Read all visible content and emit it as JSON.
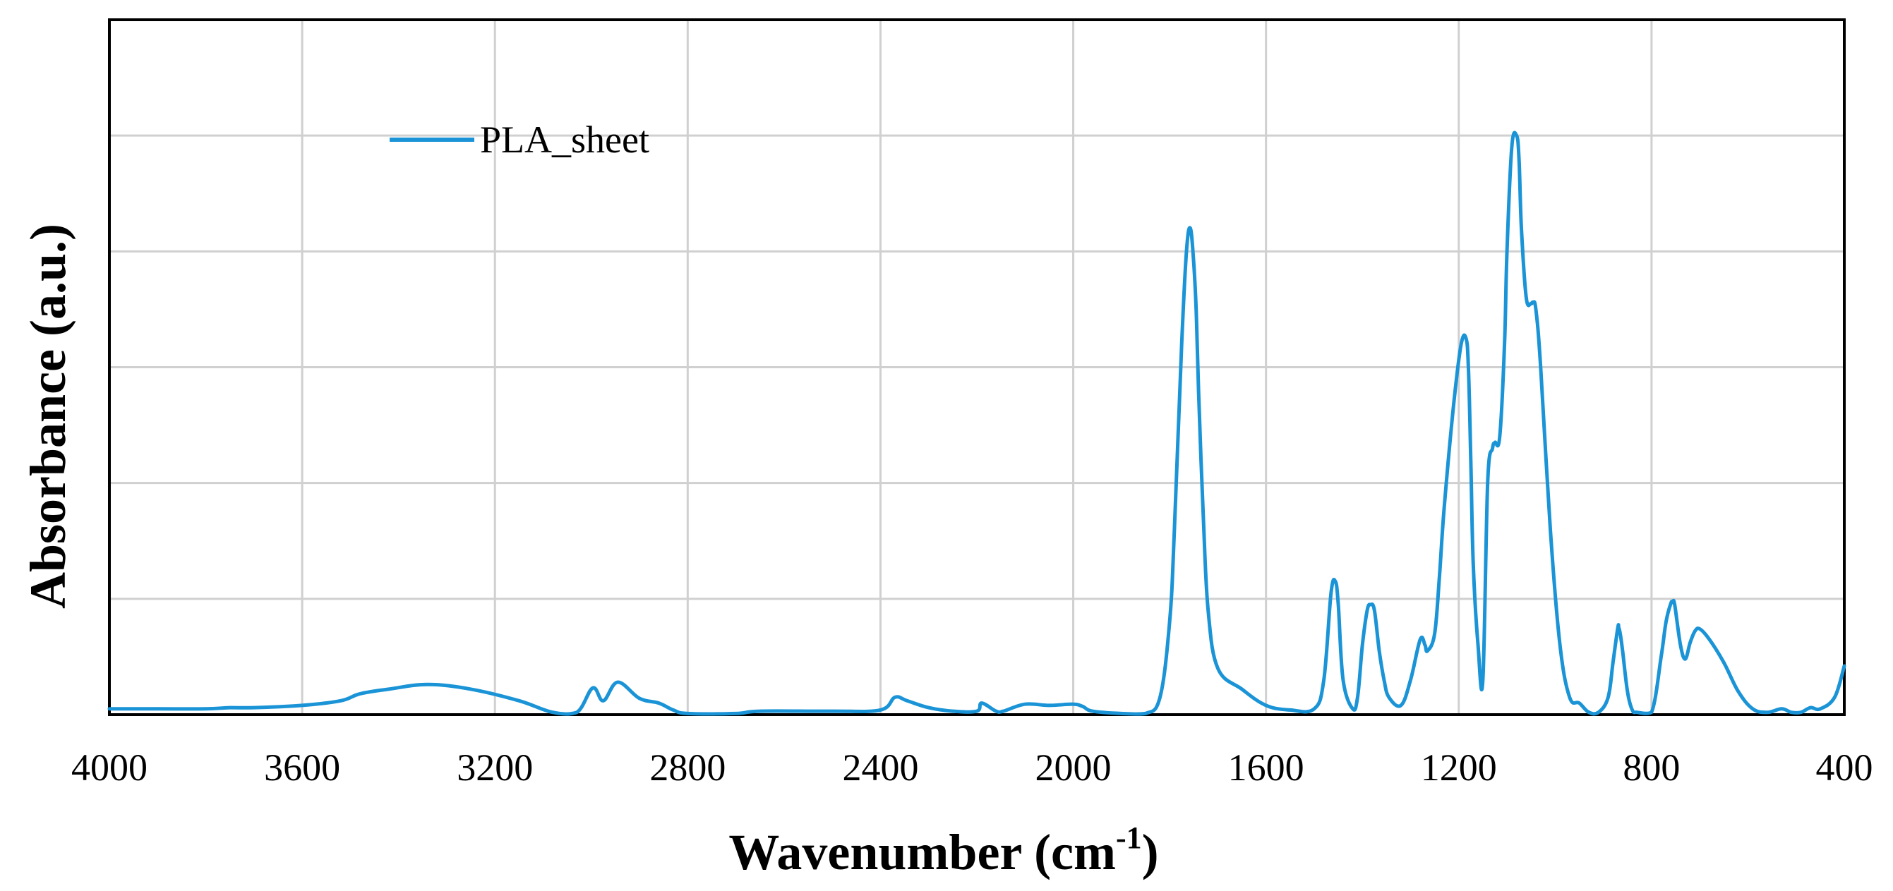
{
  "chart_data": {
    "type": "line",
    "title": "",
    "xlabel": "Wavenumber (cm",
    "xlabel_superscript": "-1",
    "xlabel_suffix": ")",
    "ylabel": "Absorbance (a.u.)",
    "xlim": [
      4000,
      400
    ],
    "x_reversed": true,
    "ylim": [
      0,
      6
    ],
    "xticks": [
      4000,
      3600,
      3200,
      2800,
      2400,
      2000,
      1600,
      1200,
      800,
      400
    ],
    "xtick_labels": [
      "4000",
      "3600",
      "3200",
      "2800",
      "2400",
      "2000",
      "1600",
      "1200",
      "800",
      "400"
    ],
    "ygrid": [
      1,
      2,
      3,
      4,
      5
    ],
    "grid": true,
    "legend_position": "top-left",
    "colors": {
      "series": "#1a94d6",
      "grid": "#d0d0d0",
      "frame": "#000000"
    },
    "series": [
      {
        "name": "PLA_sheet",
        "x": [
          4000,
          3900,
          3800,
          3750,
          3700,
          3600,
          3520,
          3480,
          3420,
          3340,
          3250,
          3150,
          3080,
          3030,
          2997,
          2975,
          2945,
          2900,
          2860,
          2830,
          2800,
          2700,
          2650,
          2500,
          2400,
          2370,
          2345,
          2300,
          2250,
          2200,
          2190,
          2160,
          2145,
          2100,
          2050,
          2000,
          1980,
          1960,
          1900,
          1850,
          1820,
          1800,
          1790,
          1775,
          1765,
          1757,
          1750,
          1745,
          1740,
          1730,
          1720,
          1700,
          1650,
          1600,
          1550,
          1500,
          1480,
          1465,
          1456,
          1450,
          1440,
          1420,
          1410,
          1400,
          1390,
          1383,
          1375,
          1365,
          1355,
          1345,
          1320,
          1300,
          1280,
          1270,
          1265,
          1250,
          1240,
          1230,
          1210,
          1195,
          1185,
          1180,
          1175,
          1170,
          1160,
          1150,
          1140,
          1130,
          1125,
          1115,
          1105,
          1100,
          1090,
          1080,
          1075,
          1070,
          1060,
          1050,
          1046,
          1040,
          1030,
          1010,
          990,
          970,
          950,
          930,
          910,
          890,
          880,
          870,
          868,
          865,
          860,
          850,
          840,
          830,
          800,
          780,
          770,
          760,
          756,
          752,
          740,
          730,
          720,
          710,
          700,
          680,
          650,
          620,
          590,
          560,
          530,
          510,
          490,
          470,
          450,
          420,
          400
        ],
        "values": [
          0.05,
          0.05,
          0.05,
          0.06,
          0.06,
          0.08,
          0.12,
          0.18,
          0.22,
          0.26,
          0.22,
          0.12,
          0.02,
          0.02,
          0.23,
          0.12,
          0.28,
          0.14,
          0.1,
          0.04,
          0.01,
          0.01,
          0.03,
          0.03,
          0.04,
          0.15,
          0.12,
          0.06,
          0.03,
          0.03,
          0.1,
          0.03,
          0.03,
          0.09,
          0.08,
          0.09,
          0.07,
          0.03,
          0.01,
          0.01,
          0.15,
          0.8,
          1.6,
          3.2,
          4.0,
          4.2,
          3.9,
          3.5,
          2.8,
          1.7,
          0.9,
          0.4,
          0.22,
          0.08,
          0.04,
          0.05,
          0.3,
          1.05,
          1.15,
          0.95,
          0.3,
          0.05,
          0.15,
          0.6,
          0.9,
          0.95,
          0.9,
          0.55,
          0.3,
          0.15,
          0.08,
          0.3,
          0.65,
          0.6,
          0.55,
          0.7,
          1.2,
          1.8,
          2.7,
          3.2,
          3.25,
          3.0,
          2.2,
          1.3,
          0.6,
          0.3,
          2.0,
          2.3,
          2.35,
          2.4,
          3.2,
          4.0,
          4.9,
          5.0,
          4.8,
          4.2,
          3.6,
          3.55,
          3.56,
          3.5,
          3.0,
          1.6,
          0.6,
          0.15,
          0.1,
          0.02,
          0.02,
          0.15,
          0.45,
          0.75,
          0.75,
          0.7,
          0.55,
          0.2,
          0.04,
          0.02,
          0.02,
          0.5,
          0.8,
          0.96,
          0.97,
          0.95,
          0.6,
          0.48,
          0.62,
          0.72,
          0.74,
          0.65,
          0.45,
          0.2,
          0.05,
          0.02,
          0.05,
          0.02,
          0.02,
          0.06,
          0.05,
          0.15,
          0.42
        ]
      }
    ]
  }
}
